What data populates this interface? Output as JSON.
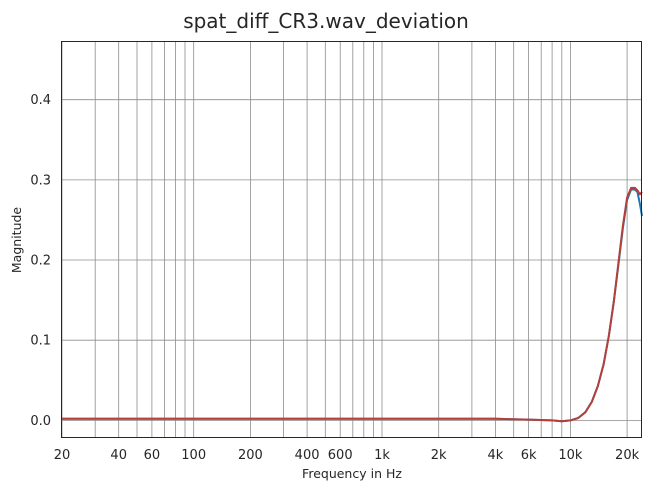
{
  "chart_data": {
    "type": "line",
    "title": "spat_diff_CR3.wav_deviation",
    "xlabel": "Frequency in Hz",
    "ylabel": "Magnitude",
    "xscale": "log",
    "xlim": [
      20,
      24000
    ],
    "ylim": [
      -0.022,
      0.472
    ],
    "x_ticks": [
      20,
      40,
      60,
      100,
      200,
      400,
      600,
      1000,
      2000,
      4000,
      6000,
      10000,
      20000
    ],
    "x_tick_labels": [
      "20",
      "40",
      "60",
      "100",
      "200",
      "400",
      "600",
      "1k",
      "2k",
      "4k",
      "6k",
      "10k",
      "20k"
    ],
    "y_ticks": [
      0.0,
      0.1,
      0.2,
      0.3,
      0.4
    ],
    "y_tick_labels": [
      "0.0",
      "0.1",
      "0.2",
      "0.3",
      "0.4"
    ],
    "grid": true,
    "series": [
      {
        "color": "#1f77b4",
        "x": [
          20,
          100,
          1000,
          4000,
          6000,
          8000,
          9000,
          10000,
          11000,
          12000,
          13000,
          14000,
          15000,
          16000,
          17000,
          18000,
          19000,
          20000,
          21000,
          22000,
          22700,
          23400,
          24000
        ],
        "y": [
          0.002,
          0.002,
          0.002,
          0.002,
          0.001,
          0.0,
          -0.001,
          0.0,
          0.003,
          0.01,
          0.023,
          0.043,
          0.07,
          0.105,
          0.148,
          0.195,
          0.24,
          0.275,
          0.288,
          0.288,
          0.285,
          0.27,
          0.255
        ]
      },
      {
        "color": "#b5403a",
        "x": [
          20,
          100,
          1000,
          4000,
          6000,
          8000,
          9000,
          10000,
          11000,
          12000,
          13000,
          14000,
          15000,
          16000,
          17000,
          18000,
          19000,
          20000,
          21000,
          22000,
          22700,
          23400,
          24000
        ],
        "y": [
          0.002,
          0.002,
          0.002,
          0.002,
          0.001,
          0.0,
          -0.001,
          0.0,
          0.003,
          0.01,
          0.023,
          0.043,
          0.07,
          0.105,
          0.148,
          0.197,
          0.243,
          0.278,
          0.29,
          0.29,
          0.287,
          0.282,
          0.285
        ]
      }
    ]
  }
}
